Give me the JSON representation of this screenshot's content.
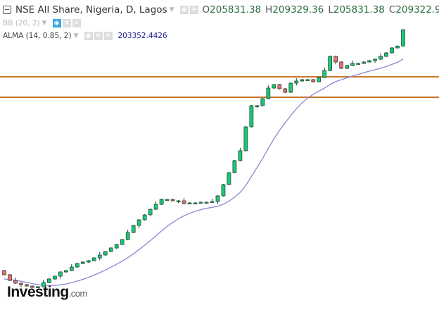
{
  "header": {
    "title": "NSE All Share, Nigeria, D, Lagos",
    "open_label": "O",
    "open": "205831.38",
    "high_label": "H",
    "high": "209329.36",
    "low_label": "L",
    "low": "205831.38",
    "close_label": "C",
    "close": "209322.98"
  },
  "indicators": [
    {
      "label": "BB (20, 2)"
    },
    {
      "label": "ALMA (14, 0.85, 2)",
      "value": "203352.4426"
    }
  ],
  "logo": {
    "main": "Investing",
    "suffix": ".com"
  },
  "colors": {
    "up": "#1ec777",
    "down": "#ef6b6b",
    "border": "#1a3a2a",
    "alma": "#8c86d6",
    "hline": "#c8752a"
  },
  "chart_data": {
    "type": "candlestick",
    "price_top": 209329,
    "price_per_px": 150,
    "horizontal_levels": [
      199279,
      194929
    ],
    "closes": [
      157129,
      155929,
      155329,
      155029,
      154729,
      154429,
      154579,
      155479,
      156229,
      156829,
      157729,
      158029,
      158779,
      159529,
      159829,
      160129,
      160729,
      161329,
      162079,
      162829,
      163579,
      164629,
      166129,
      167629,
      168829,
      169879,
      171079,
      172129,
      173179,
      173179,
      172879,
      172879,
      172279,
      172429,
      172429,
      172579,
      172579,
      172729,
      173929,
      176329,
      178879,
      181429,
      183529,
      188629,
      193129,
      193129,
      194629,
      196879,
      197629,
      196729,
      195979,
      197929,
      198379,
      198679,
      198679,
      198229,
      199129,
      200629,
      203629,
      202429,
      201079,
      201679,
      202129,
      202129,
      202429,
      202729,
      203029,
      203629,
      204379,
      205429,
      205831,
      209323
    ],
    "last_high": 209329
  }
}
